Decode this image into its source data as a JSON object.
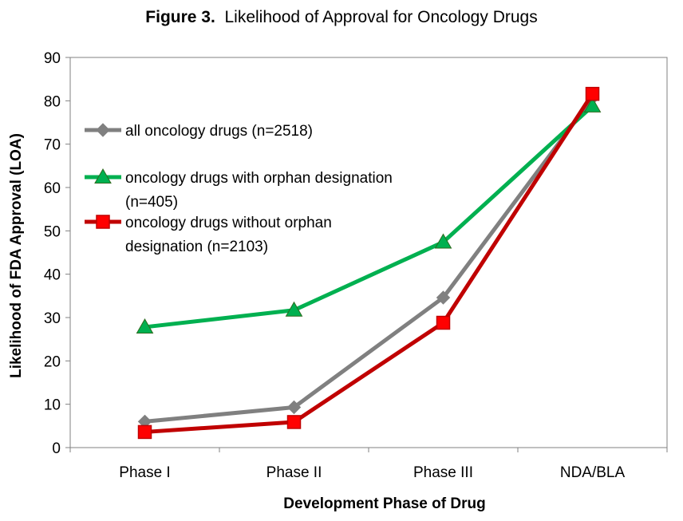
{
  "title": {
    "number": "Figure 3.",
    "text": "Likelihood of Approval for Oncology Drugs"
  },
  "chart_data": {
    "type": "line",
    "categories": [
      "Phase I",
      "Phase II",
      "Phase III",
      "NDA/BLA"
    ],
    "xlabel": "Development Phase of Drug",
    "ylabel": "Likelihood of FDA Approval (LOA)",
    "ylim": [
      0,
      90
    ],
    "yticks": [
      0,
      10,
      20,
      30,
      40,
      50,
      60,
      70,
      80,
      90
    ],
    "grid": false,
    "legend_position": "upper-left",
    "series": [
      {
        "name": "all oncology drugs (n=2518)",
        "legend_lines": [
          "all oncology drugs (n=2518)"
        ],
        "values": [
          6.0,
          9.3,
          34.6,
          80.6
        ],
        "color": "#808080",
        "marker": "diamond"
      },
      {
        "name": "oncology drugs with orphan designation (n=405)",
        "legend_lines": [
          "oncology drugs with orphan designation",
          "(n=405)"
        ],
        "values": [
          27.8,
          31.7,
          47.4,
          78.8
        ],
        "color": "#00B050",
        "marker": "triangle"
      },
      {
        "name": "oncology drugs without orphan designation (n=2103)",
        "legend_lines": [
          "oncology drugs without orphan",
          "designation (n=2103)"
        ],
        "values": [
          3.6,
          5.9,
          28.8,
          81.6
        ],
        "color": "#C00000",
        "marker_fill": "#FF0000",
        "marker": "square"
      }
    ]
  }
}
